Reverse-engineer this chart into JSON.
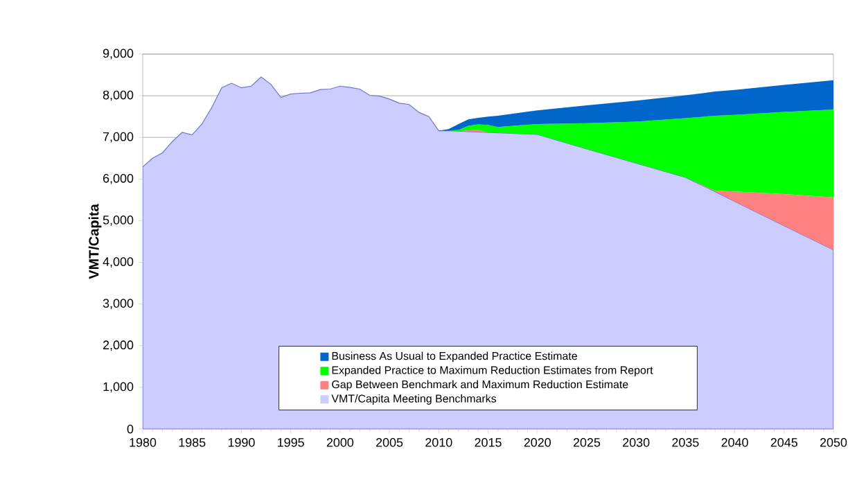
{
  "chart_data": {
    "type": "area",
    "stacked": true,
    "ylabel": "VMT/Capita",
    "x": [
      1980,
      1981,
      1982,
      1983,
      1984,
      1985,
      1986,
      1987,
      1988,
      1989,
      1990,
      1991,
      1992,
      1993,
      1994,
      1995,
      1996,
      1997,
      1998,
      1999,
      2000,
      2001,
      2002,
      2003,
      2004,
      2005,
      2006,
      2007,
      2008,
      2009,
      2010,
      2011,
      2012,
      2013,
      2014,
      2015,
      2016,
      2020,
      2025,
      2030,
      2035,
      2038,
      2040,
      2045,
      2050
    ],
    "series": [
      {
        "name": "VMT/Capita Meeting Benchmarks",
        "color": "#ccccff",
        "values": [
          6290,
          6500,
          6630,
          6900,
          7120,
          7060,
          7320,
          7720,
          8190,
          8300,
          8190,
          8230,
          8450,
          8270,
          7960,
          8040,
          8060,
          8070,
          8150,
          8160,
          8230,
          8200,
          8160,
          8010,
          7990,
          7920,
          7820,
          7790,
          7600,
          7500,
          7160,
          7160,
          7150,
          7140,
          7130,
          7120,
          7110,
          7070,
          6720,
          6380,
          6040,
          5700,
          5460,
          4880,
          4300
        ]
      },
      {
        "name": "Gap Between Benchmark and Maximum Reduction Estimate",
        "color": "#ff8080",
        "values": [
          null,
          null,
          null,
          null,
          null,
          null,
          null,
          null,
          null,
          null,
          null,
          null,
          null,
          null,
          null,
          null,
          null,
          null,
          null,
          null,
          null,
          null,
          null,
          null,
          null,
          null,
          null,
          null,
          null,
          null,
          0,
          0,
          0,
          30,
          50,
          0,
          0,
          0,
          0,
          0,
          0,
          20,
          240,
          760,
          1260
        ]
      },
      {
        "name": "Expanded Practice to Maximum Reduction Estimates from Report",
        "color": "#00ff00",
        "values": [
          null,
          null,
          null,
          null,
          null,
          null,
          null,
          null,
          null,
          null,
          null,
          null,
          null,
          null,
          null,
          null,
          null,
          null,
          null,
          null,
          null,
          null,
          null,
          null,
          null,
          null,
          null,
          null,
          null,
          null,
          0,
          0,
          30,
          110,
          130,
          180,
          140,
          250,
          620,
          1000,
          1420,
          1800,
          1840,
          1970,
          2110
        ]
      },
      {
        "name": "Business As Usual to Expanded Practice Estimate",
        "color": "#0066cc",
        "values": [
          null,
          null,
          null,
          null,
          null,
          null,
          null,
          null,
          null,
          null,
          null,
          null,
          null,
          null,
          null,
          null,
          null,
          null,
          null,
          null,
          null,
          null,
          null,
          null,
          null,
          null,
          null,
          null,
          null,
          null,
          0,
          40,
          140,
          150,
          160,
          200,
          270,
          330,
          430,
          500,
          550,
          580,
          600,
          650,
          700
        ]
      }
    ],
    "xlim": [
      1980,
      2050
    ],
    "xticks": [
      1980,
      1985,
      1990,
      1995,
      2000,
      2005,
      2010,
      2015,
      2020,
      2025,
      2030,
      2035,
      2040,
      2045,
      2050
    ],
    "ylim": [
      0,
      9000
    ],
    "yticks": [
      0,
      {
        "value": 1000,
        "label": "1,000"
      },
      {
        "value": 2000,
        "label": "2,000"
      },
      {
        "value": 3000,
        "label": "3,000"
      },
      {
        "value": 4000,
        "label": "4,000"
      },
      {
        "value": 5000,
        "label": "5,000"
      },
      {
        "value": 6000,
        "label": "6,000"
      },
      {
        "value": 7000,
        "label": "7,000"
      },
      {
        "value": 8000,
        "label": "8,000"
      },
      {
        "value": 9000,
        "label": "9,000"
      }
    ],
    "grid": "y",
    "legend": "bottom"
  }
}
